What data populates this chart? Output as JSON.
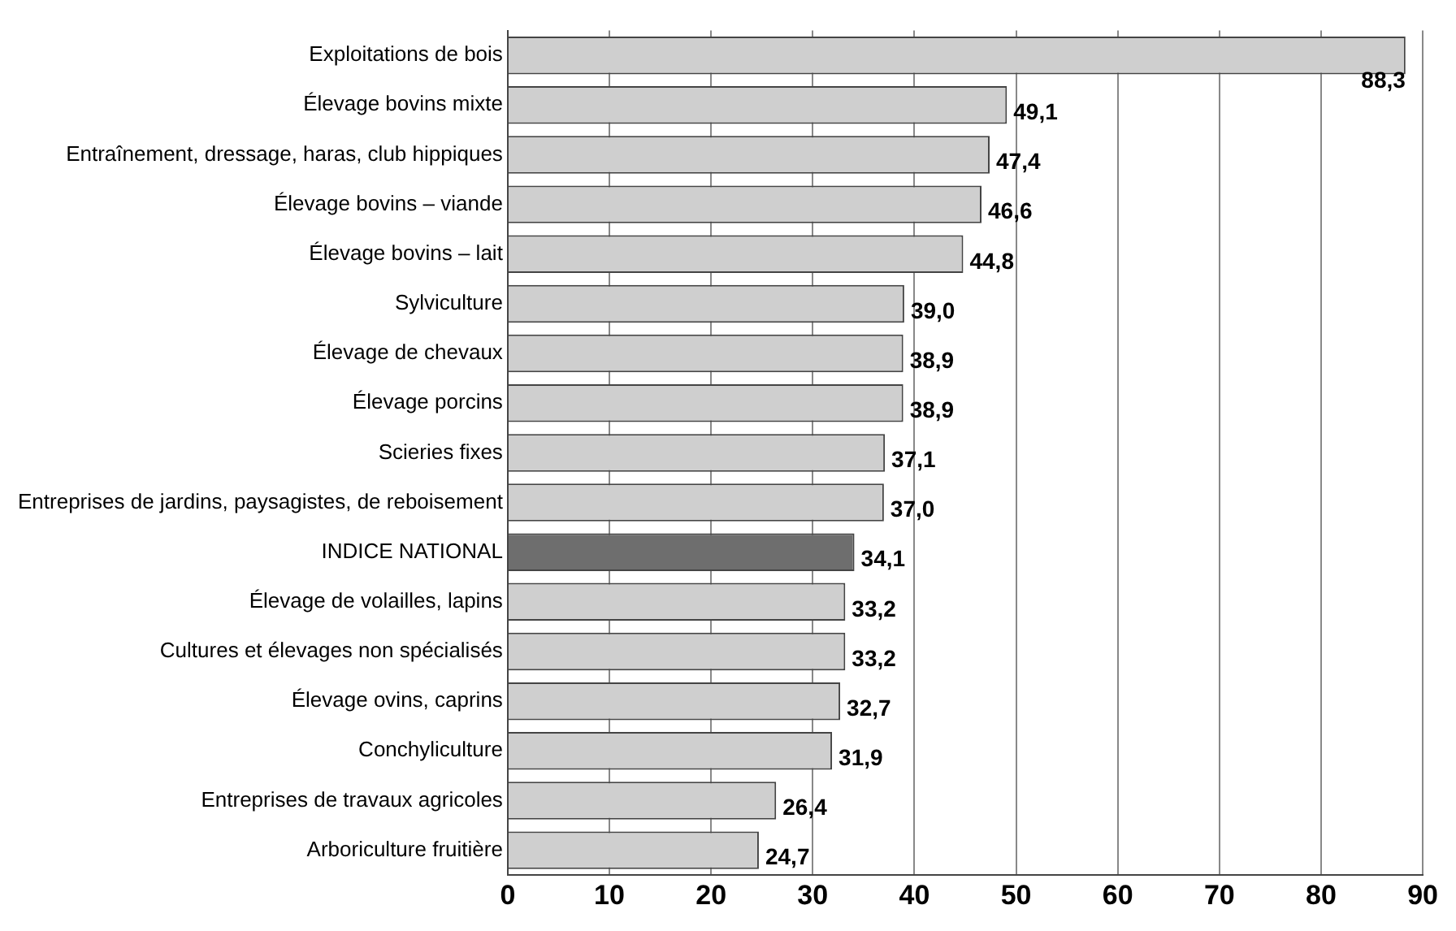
{
  "chart_data": {
    "type": "bar",
    "orientation": "horizontal",
    "categories": [
      "Exploitations de bois",
      "Élevage bovins mixte",
      "Entraînement, dressage, haras, club hippiques",
      "Élevage bovins – viande",
      "Élevage bovins – lait",
      "Sylviculture",
      "Élevage de chevaux",
      "Élevage porcins",
      "Scieries fixes",
      "Entreprises de jardins, paysagistes, de reboisement",
      "INDICE NATIONAL",
      "Élevage de volailles, lapins",
      "Cultures et élevages non spécialisés",
      "Élevage ovins, caprins",
      "Conchyliculture",
      "Entreprises de travaux agricoles",
      "Arboriculture fruitière"
    ],
    "values": [
      88.3,
      49.1,
      47.4,
      46.6,
      44.8,
      39.0,
      38.9,
      38.9,
      37.1,
      37.0,
      34.1,
      33.2,
      33.2,
      32.7,
      31.9,
      26.4,
      24.7
    ],
    "value_labels": [
      "88,3",
      "49,1",
      "47,4",
      "46,6",
      "44,8",
      "39,0",
      "38,9",
      "38,9",
      "37,1",
      "37,0",
      "34,1",
      "33,2",
      "33,2",
      "32,7",
      "31,9",
      "26,4",
      "24,7"
    ],
    "colors": [
      "#cfcfcf",
      "#cfcfcf",
      "#cfcfcf",
      "#cfcfcf",
      "#cfcfcf",
      "#cfcfcf",
      "#cfcfcf",
      "#cfcfcf",
      "#cfcfcf",
      "#cfcfcf",
      "#6e6e6e",
      "#cfcfcf",
      "#cfcfcf",
      "#cfcfcf",
      "#cfcfcf",
      "#cfcfcf",
      "#cfcfcf"
    ],
    "xlim": [
      0,
      90
    ],
    "xticks": [
      0,
      10,
      20,
      30,
      40,
      50,
      60,
      70,
      80,
      90
    ],
    "grid": "x",
    "legend": false
  }
}
